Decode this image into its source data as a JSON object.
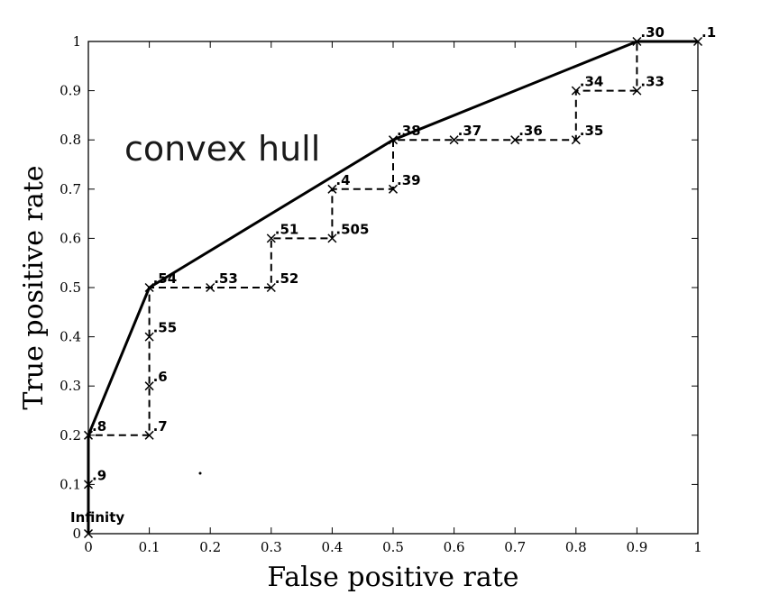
{
  "chart_data": {
    "type": "line",
    "xlabel": "False positive rate",
    "ylabel": "True positive rate",
    "xlim": [
      0,
      1
    ],
    "ylim": [
      0,
      1
    ],
    "xticks": [
      "0",
      "0.1",
      "0.2",
      "0.3",
      "0.4",
      "0.5",
      "0.6",
      "0.7",
      "0.8",
      "0.9",
      "1"
    ],
    "yticks": [
      "0",
      "0.1",
      "0.2",
      "0.3",
      "0.4",
      "0.5",
      "0.6",
      "0.7",
      "0.8",
      "0.9",
      "1"
    ],
    "annotation": "convex hull",
    "grid": false,
    "series": [
      {
        "style": "dashed",
        "marker": "x",
        "points": [
          {
            "x": 0.0,
            "y": 0.0,
            "label": "Infinity"
          },
          {
            "x": 0.0,
            "y": 0.1,
            "label": ".9"
          },
          {
            "x": 0.0,
            "y": 0.2,
            "label": ".8"
          },
          {
            "x": 0.1,
            "y": 0.2,
            "label": ".7"
          },
          {
            "x": 0.1,
            "y": 0.3,
            "label": ".6"
          },
          {
            "x": 0.1,
            "y": 0.4,
            "label": ".55"
          },
          {
            "x": 0.1,
            "y": 0.5,
            "label": ".54"
          },
          {
            "x": 0.2,
            "y": 0.5,
            "label": ".53"
          },
          {
            "x": 0.3,
            "y": 0.5,
            "label": ".52"
          },
          {
            "x": 0.3,
            "y": 0.6,
            "label": ".51"
          },
          {
            "x": 0.4,
            "y": 0.6,
            "label": ".505"
          },
          {
            "x": 0.4,
            "y": 0.7,
            "label": ".4"
          },
          {
            "x": 0.5,
            "y": 0.7,
            "label": ".39"
          },
          {
            "x": 0.5,
            "y": 0.8,
            "label": ".38"
          },
          {
            "x": 0.6,
            "y": 0.8,
            "label": ".37"
          },
          {
            "x": 0.7,
            "y": 0.8,
            "label": ".36"
          },
          {
            "x": 0.8,
            "y": 0.8,
            "label": ".35"
          },
          {
            "x": 0.8,
            "y": 0.9,
            "label": ".34"
          },
          {
            "x": 0.9,
            "y": 0.9,
            "label": ".33"
          },
          {
            "x": 0.9,
            "y": 1.0,
            "label": ".30"
          },
          {
            "x": 1.0,
            "y": 1.0,
            "label": ".1"
          }
        ]
      },
      {
        "style": "solid",
        "points": [
          {
            "x": 0.0,
            "y": 0.0
          },
          {
            "x": 0.0,
            "y": 0.2
          },
          {
            "x": 0.1,
            "y": 0.5
          },
          {
            "x": 0.5,
            "y": 0.8
          },
          {
            "x": 0.9,
            "y": 1.0
          },
          {
            "x": 1.0,
            "y": 1.0
          }
        ]
      }
    ]
  }
}
